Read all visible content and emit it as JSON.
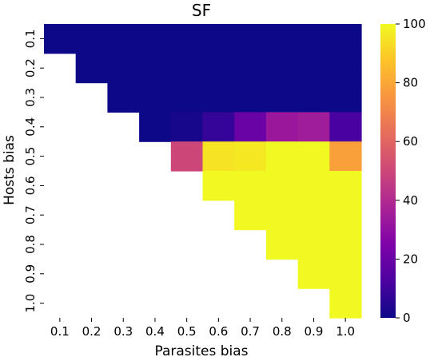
{
  "chart_data": {
    "type": "heatmap",
    "title": "SF",
    "xlabel": "Parasites bias",
    "ylabel": "Hosts bias",
    "x_categories": [
      "0.1",
      "0.2",
      "0.3",
      "0.4",
      "0.5",
      "0.6",
      "0.7",
      "0.8",
      "0.9",
      "1.0"
    ],
    "y_categories": [
      "0.1",
      "0.2",
      "0.3",
      "0.4",
      "0.5",
      "0.6",
      "0.7",
      "0.8",
      "0.9",
      "1.0"
    ],
    "values": [
      [
        0,
        0,
        0,
        0,
        0,
        0,
        0,
        0,
        0,
        0
      ],
      [
        null,
        0,
        0,
        0,
        0,
        0,
        0,
        0,
        0,
        0
      ],
      [
        null,
        null,
        0,
        0,
        0,
        0,
        0,
        0,
        0,
        0
      ],
      [
        null,
        null,
        null,
        0,
        2,
        8,
        20,
        33,
        35,
        12
      ],
      [
        null,
        null,
        null,
        null,
        50,
        95,
        96,
        100,
        100,
        78
      ],
      [
        null,
        null,
        null,
        null,
        null,
        100,
        100,
        100,
        100,
        100
      ],
      [
        null,
        null,
        null,
        null,
        null,
        null,
        100,
        100,
        100,
        100
      ],
      [
        null,
        null,
        null,
        null,
        null,
        null,
        null,
        100,
        100,
        100
      ],
      [
        null,
        null,
        null,
        null,
        null,
        null,
        null,
        null,
        100,
        100
      ],
      [
        null,
        null,
        null,
        null,
        null,
        null,
        null,
        null,
        null,
        100
      ]
    ],
    "colormap": "plasma",
    "vmin": 0,
    "vmax": 100,
    "colorbar_ticks": [
      "0",
      "20",
      "40",
      "60",
      "80",
      "100"
    ]
  }
}
